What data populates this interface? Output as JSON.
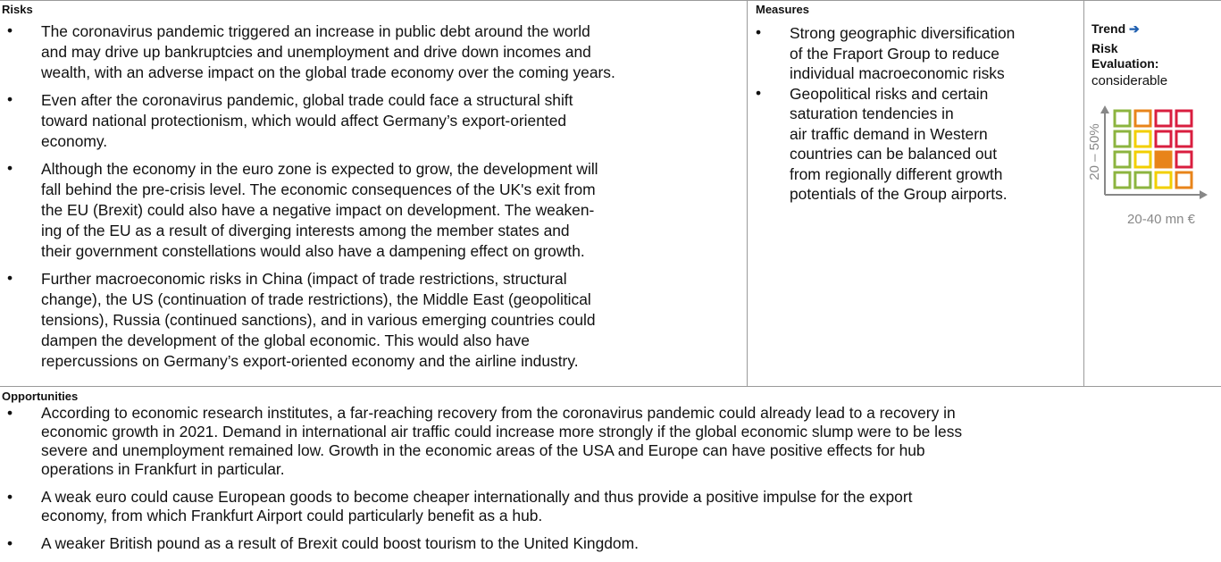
{
  "risks": {
    "heading": "Risks",
    "items": [
      [
        "The coronavirus pandemic triggered an increase in public debt around the world",
        "and may drive up bankruptcies and unemployment and drive down incomes and",
        "wealth, with an adverse impact on the global trade economy over the coming years."
      ],
      [
        "Even after the coronavirus pandemic, global trade could face a structural shift",
        "toward national protectionism, which would affect Germany’s export-oriented",
        "economy."
      ],
      [
        "Although the economy in the euro zone is expected to grow, the development will",
        "fall behind the pre-crisis level. The economic consequences of the UK's exit from",
        "the EU (Brexit) could also have a negative impact on development. The weaken-",
        "ing of the EU as a result of diverging interests among the member states and",
        "their government constellations would also have a dampening effect on growth."
      ],
      [
        "Further macroeconomic risks in China (impact of trade restrictions, structural",
        "change), the US (continuation of trade restrictions), the Middle East (geopolitical",
        "tensions), Russia (continued sanctions), and in various emerging countries could",
        "dampen the development of the global economic. This would also have",
        "repercussions on Germany’s export-oriented economy and the airline industry."
      ]
    ]
  },
  "measures": {
    "heading": "Measures",
    "items": [
      [
        "Strong geographic diversification",
        "of the Fraport Group to reduce",
        "individual macroeconomic risks"
      ],
      [
        "Geopolitical risks and certain",
        "saturation tendencies in",
        "air traffic demand in Western",
        "countries can be balanced out",
        "from regionally different growth",
        "potentials of the Group airports."
      ]
    ]
  },
  "trend": {
    "heading": "Trend",
    "arrow": "➔",
    "evaluation_label": "Risk Evaluation:",
    "evaluation": "considerable",
    "y_axis_label": "20 – 50%",
    "x_axis_label": "20-40 mn €"
  },
  "opportunities": {
    "heading": "Opportunities",
    "items": [
      [
        "According to economic research institutes, a far-reaching recovery from the coronavirus pandemic could already lead to a recovery in",
        "economic growth in 2021. Demand in international air traffic could increase more strongly if the global economic slump were to be less",
        "severe and unemployment remained low. Growth in the economic areas of the USA and Europe can have positive effects for hub",
        "operations in Frankfurt in particular."
      ],
      [
        "A weak euro could cause European goods to become cheaper internationally and thus provide a positive impulse for the export",
        "economy, from which Frankfurt Airport could particularly benefit as a hub."
      ],
      [
        "A weaker British pound as a result of Brexit could boost tourism to the United Kingdom."
      ]
    ]
  }
}
